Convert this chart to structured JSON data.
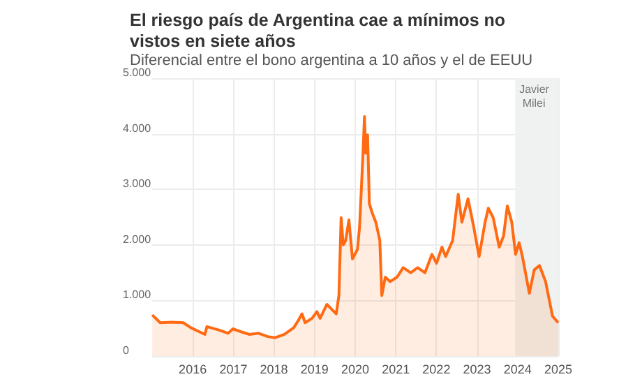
{
  "chart_data": {
    "type": "area",
    "title": "El riesgo país de Argentina cae a mínimos no vistos en siete años",
    "subtitle": "Diferencial entre el bono argentina a 10 años y el de EEUU",
    "x": [
      "2015-01-02",
      "2015-03-15",
      "2015-06-25",
      "2015-10-08",
      "2015-12-15",
      "2016-04-20",
      "2016-05-08",
      "2016-08-22",
      "2016-11-15",
      "2016-12-28",
      "2017-03-22",
      "2017-05-22",
      "2017-08-15",
      "2017-11-06",
      "2018-01-12",
      "2018-04-05",
      "2018-06-28",
      "2018-08-08",
      "2018-09-10",
      "2018-10-08",
      "2018-12-10",
      "2019-01-22",
      "2019-02-20",
      "2019-04-22",
      "2019-06-05",
      "2019-07-15",
      "2019-08-08",
      "2019-08-28",
      "2019-09-16",
      "2019-10-08",
      "2019-11-06",
      "2019-12-08",
      "2020-01-22",
      "2020-02-10",
      "2020-03-10",
      "2020-03-25",
      "2020-04-05",
      "2020-04-22",
      "2020-05-08",
      "2020-06-02",
      "2020-07-05",
      "2020-08-10",
      "2020-08-28",
      "2020-09-28",
      "2020-11-10",
      "2021-01-12",
      "2021-03-08",
      "2021-05-15",
      "2021-07-16",
      "2021-09-20",
      "2021-11-22",
      "2022-01-02",
      "2022-02-20",
      "2022-03-25",
      "2022-05-27",
      "2022-07-16",
      "2022-08-18",
      "2022-10-12",
      "2022-12-02",
      "2023-01-20",
      "2023-03-15",
      "2023-04-13",
      "2023-05-27",
      "2023-07-20",
      "2023-08-28",
      "2023-10-01",
      "2023-11-10",
      "2023-12-14",
      "2024-01-15",
      "2024-02-14",
      "2024-04-16",
      "2024-05-30",
      "2024-07-16",
      "2024-09-09",
      "2024-11-10",
      "2024-12-31"
    ],
    "series": [
      {
        "color": "#ff6a13",
        "values": [
          740,
          600,
          610,
          600,
          510,
          390,
          530,
          470,
          410,
          490,
          430,
          390,
          410,
          350,
          330,
          390,
          510,
          640,
          760,
          600,
          680,
          800,
          680,
          930,
          840,
          760,
          1090,
          2490,
          2000,
          2080,
          2450,
          1750,
          1920,
          2330,
          3570,
          4310,
          3650,
          3980,
          2740,
          2580,
          2410,
          2080,
          1090,
          1420,
          1340,
          1420,
          1590,
          1500,
          1590,
          1500,
          1830,
          1670,
          1960,
          1790,
          2080,
          2910,
          2410,
          2830,
          2330,
          1790,
          2410,
          2660,
          2490,
          1960,
          2160,
          2700,
          2410,
          1830,
          2040,
          1790,
          1130,
          1550,
          1630,
          1340,
          720,
          600
        ]
      }
    ],
    "xlim": [
      "2015-01-01",
      "2025-01-01"
    ],
    "xticks": [
      "2016",
      "2017",
      "2018",
      "2019",
      "2020",
      "2021",
      "2022",
      "2023",
      "2024",
      "2025"
    ],
    "ylim": [
      0,
      5000
    ],
    "yticks": [
      {
        "value": 0,
        "label": "0"
      },
      {
        "value": 1000,
        "label": "1.000"
      },
      {
        "value": 2000,
        "label": "2.000"
      },
      {
        "value": 3000,
        "label": "3.000"
      },
      {
        "value": 4000,
        "label": "4.000"
      },
      {
        "value": 5000,
        "label": "5.000"
      }
    ],
    "bands": [
      {
        "axis": "x",
        "from": "2023-12-10",
        "to": "2025-01-01",
        "label": "Javier Milei",
        "color": "#eff2f1"
      }
    ],
    "grid": true
  }
}
